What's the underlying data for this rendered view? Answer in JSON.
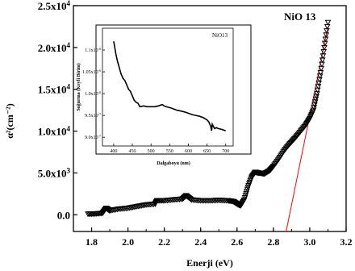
{
  "chart_data": [
    {
      "type": "scatter",
      "title": "",
      "legend": "NiO 13",
      "xlabel": "Enerji (eV)",
      "ylabel": "α²(cm⁻²)",
      "xlim": [
        1.7,
        3.2
      ],
      "ylim": [
        -2000,
        25000
      ],
      "x_ticks": [
        "1.8",
        "2.0",
        "2.2",
        "2.4",
        "2.6",
        "2.8",
        "3.0",
        "3.2"
      ],
      "y_ticks": [
        {
          "value": 0,
          "mantissa": "0.0",
          "exp": ""
        },
        {
          "value": 5000,
          "mantissa": "5.0x10",
          "exp": "3"
        },
        {
          "value": 10000,
          "mantissa": "1.0x10",
          "exp": "4"
        },
        {
          "value": 15000,
          "mantissa": "1.5x10",
          "exp": "4"
        },
        {
          "value": 20000,
          "mantissa": "2.0x10",
          "exp": "4"
        },
        {
          "value": 25000,
          "mantissa": "2.5x10",
          "exp": "4"
        }
      ],
      "series": [
        {
          "marker": "triangle-down",
          "color": "#000000",
          "x": [
            1.78,
            1.82,
            1.86,
            1.88,
            1.9,
            1.95,
            2.0,
            2.05,
            2.1,
            2.15,
            2.16,
            2.2,
            2.25,
            2.3,
            2.32,
            2.35,
            2.4,
            2.45,
            2.5,
            2.55,
            2.58,
            2.6,
            2.62,
            2.64,
            2.66,
            2.68,
            2.7,
            2.72,
            2.75,
            2.78,
            2.8,
            2.83,
            2.86,
            2.89,
            2.92,
            2.95,
            2.98,
            3.0,
            3.02,
            3.04,
            3.06,
            3.08,
            3.1
          ],
          "y": [
            100,
            120,
            200,
            800,
            500,
            700,
            800,
            1000,
            1200,
            1300,
            1700,
            1700,
            1800,
            1900,
            2300,
            1800,
            1700,
            1700,
            1750,
            1700,
            1600,
            1300,
            1100,
            1800,
            3300,
            4500,
            5100,
            5000,
            4900,
            5300,
            5800,
            6700,
            7700,
            8500,
            9200,
            10000,
            10800,
            11500,
            12500,
            14500,
            17000,
            20000,
            23000
          ]
        },
        {
          "name": "",
          "type": "fit-line",
          "color": "#ff0000",
          "x": [
            2.87,
            3.1
          ],
          "y": [
            -2000,
            22500
          ]
        }
      ]
    },
    {
      "type": "line",
      "legend": "NiO13",
      "xlabel": "Dalgaboyu (nm)",
      "ylabel": "Soğurma (Keyfi Birim)",
      "xlim": [
        370,
        720
      ],
      "ylim": [
        8.8e-07,
        1.15e-06
      ],
      "x_ticks": [
        "400",
        "450",
        "500",
        "550",
        "600",
        "650",
        "700"
      ],
      "y_ticks": [
        {
          "value": 9e-07,
          "mantissa": "9.0x10",
          "exp": "-7"
        },
        {
          "value": 9.5e-07,
          "mantissa": "9.5x10",
          "exp": "-7"
        },
        {
          "value": 1e-06,
          "mantissa": "1.0x10",
          "exp": "-6"
        },
        {
          "value": 1.05e-06,
          "mantissa": "1.05x10",
          "exp": "-6"
        },
        {
          "value": 1.1e-06,
          "mantissa": "1.1x10",
          "exp": "-6"
        }
      ],
      "series": [
        {
          "color": "#000000",
          "x": [
            400,
            403,
            406,
            410,
            415,
            420,
            425,
            430,
            435,
            440,
            445,
            450,
            455,
            460,
            465,
            470,
            480,
            490,
            500,
            510,
            520,
            530,
            535,
            540,
            550,
            560,
            570,
            580,
            590,
            600,
            610,
            620,
            630,
            640,
            650,
            655,
            660,
            662,
            664,
            667,
            670,
            675,
            680,
            690,
            700
          ],
          "y": [
            1.12e-06,
            1.105e-06,
            1.09e-06,
            1.075e-06,
            1.06e-06,
            1.045e-06,
            1.035e-06,
            1.03e-06,
            1.02e-06,
            1.01e-06,
            1.005e-06,
            9.95e-07,
            9.85e-07,
            9.8e-07,
            9.78e-07,
            9.7e-07,
            9.72e-07,
            9.7e-07,
            9.7e-07,
            9.7e-07,
            9.72e-07,
            9.75e-07,
            9.72e-07,
            9.7e-07,
            9.68e-07,
            9.65e-07,
            9.62e-07,
            9.6e-07,
            9.58e-07,
            9.55e-07,
            9.52e-07,
            9.5e-07,
            9.48e-07,
            9.45e-07,
            9.4e-07,
            9.35e-07,
            9.25e-07,
            9.15e-07,
            9.3e-07,
            9.25e-07,
            9.2e-07,
            9.22e-07,
            9.2e-07,
            9.18e-07,
            9.15e-07
          ]
        }
      ]
    }
  ]
}
